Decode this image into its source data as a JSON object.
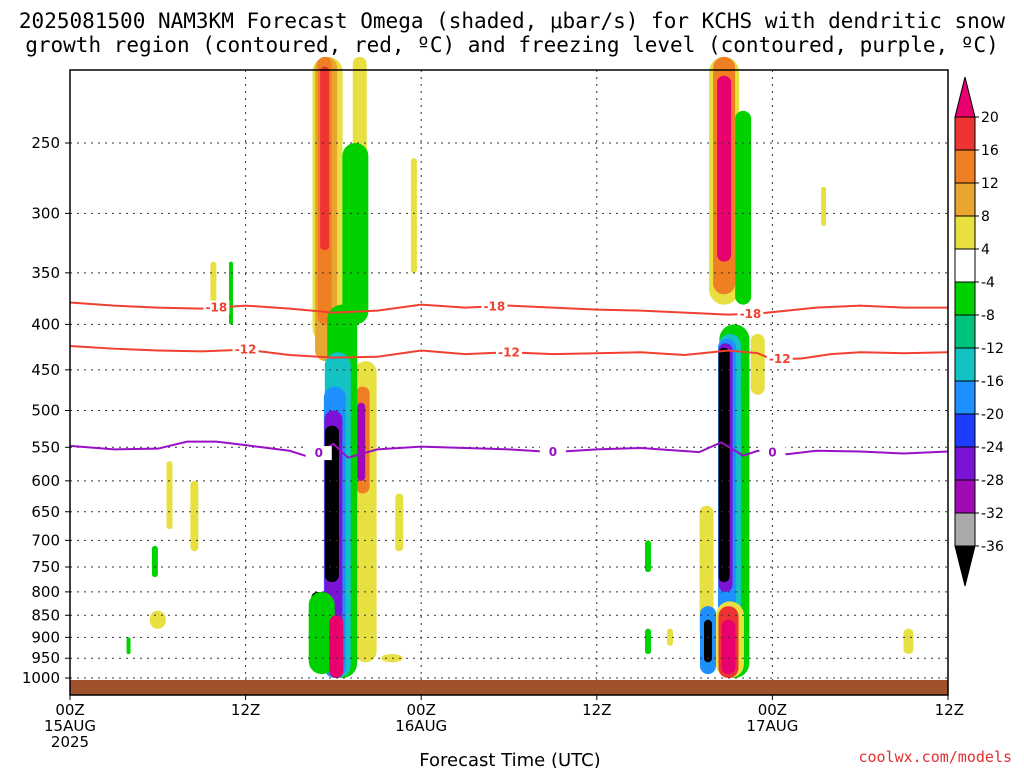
{
  "chart_data": {
    "type": "heatmap",
    "title_line1": "2025081500 NAM3KM Forecast Omega (shaded, μbar/s) for KCHS with dendritic snow",
    "title_line2": "growth region (contoured, red, ºC) and freezing level (contoured, purple, ºC)",
    "xlabel": "Forecast Time (UTC)",
    "ylabel": "",
    "x_ticks": [
      {
        "hour": 0,
        "lines": [
          "00Z",
          "15AUG",
          "2025"
        ]
      },
      {
        "hour": 12,
        "lines": [
          "12Z"
        ]
      },
      {
        "hour": 24,
        "lines": [
          "00Z",
          "16AUG"
        ]
      },
      {
        "hour": 36,
        "lines": [
          "12Z"
        ]
      },
      {
        "hour": 48,
        "lines": [
          "00Z",
          "17AUG"
        ]
      },
      {
        "hour": 60,
        "lines": [
          "12Z"
        ]
      }
    ],
    "xlim": [
      0,
      60
    ],
    "y_ticks": [
      "250",
      "300",
      "350",
      "400",
      "450",
      "500",
      "550",
      "600",
      "650",
      "700",
      "750",
      "800",
      "850",
      "900",
      "950",
      "1000"
    ],
    "ylim_hPa": [
      1000,
      200
    ],
    "colorbar": {
      "labels": [
        "20",
        "16",
        "12",
        "8",
        "4",
        "-4",
        "-8",
        "-12",
        "-16",
        "-20",
        "-24",
        "-28",
        "-32",
        "-36"
      ],
      "colors": [
        "#e8006f",
        "#ee3333",
        "#ee7f22",
        "#e8a530",
        "#e7e040",
        "#ffffff",
        "#00d200",
        "#00c37b",
        "#13c3c3",
        "#1e90ff",
        "#1e3cff",
        "#7b12d6",
        "#a00ab4",
        "#aaaaaa",
        "#000000"
      ]
    },
    "contours": [
      {
        "name": "-18",
        "color": "#f04030",
        "label_positions_hours": [
          10,
          29,
          46.5
        ]
      },
      {
        "name": "-12",
        "color": "#f04030",
        "label_positions_hours": [
          12,
          30,
          48.5
        ]
      },
      {
        "name": "0",
        "color": "#9a10c8",
        "label_positions_hours": [
          17,
          33,
          48
        ]
      }
    ],
    "series": [
      {
        "name": "-18",
        "x": [
          0,
          3,
          6,
          9,
          12,
          15,
          18,
          21,
          24,
          27,
          30,
          33,
          36,
          39,
          42,
          45,
          47,
          49,
          51,
          54,
          57,
          60
        ],
        "y": [
          378,
          381,
          383,
          384,
          381,
          384,
          388,
          386,
          380,
          383,
          381,
          383,
          385,
          386,
          388,
          390,
          389,
          386,
          383,
          381,
          383,
          383
        ]
      },
      {
        "name": "-12",
        "x": [
          0,
          3,
          6,
          9,
          12,
          15,
          18,
          21,
          24,
          27,
          30,
          33,
          36,
          39,
          42,
          45,
          47,
          48,
          50,
          52,
          54,
          57,
          60
        ],
        "y": [
          423,
          426,
          428,
          429,
          427,
          433,
          436,
          435,
          428,
          432,
          430,
          432,
          431,
          430,
          433,
          428,
          431,
          438,
          437,
          432,
          430,
          431,
          430
        ]
      },
      {
        "name": "0",
        "x": [
          0,
          3,
          6,
          8,
          10,
          12,
          15,
          16.5,
          18,
          19,
          21,
          24,
          27,
          30,
          33,
          36,
          39,
          43,
          44.5,
          46,
          47,
          49,
          51,
          54,
          57,
          60
        ],
        "y": [
          548,
          553,
          552,
          542,
          542,
          547,
          555,
          565,
          545,
          565,
          553,
          549,
          551,
          553,
          557,
          553,
          551,
          557,
          543,
          562,
          555,
          560,
          555,
          556,
          559,
          556
        ]
      }
    ],
    "shaded_features": [
      {
        "name": "upward motion column 15AUG 18Z",
        "type": "negative omega",
        "center_hour": 17.3,
        "top_hPa": 480,
        "bottom_hPa": 1000,
        "min_value": "<-36"
      },
      {
        "name": "subsidence column 15AUG 18Z upper",
        "type": "positive omega",
        "center_hour": 17.5,
        "top_hPa": 200,
        "bottom_hPa": 440,
        "max_value": ">20"
      },
      {
        "name": "upward motion column 16AUG 19Z",
        "type": "negative omega",
        "center_hour": 44.7,
        "top_hPa": 400,
        "bottom_hPa": 1000,
        "min_value": "<-36"
      },
      {
        "name": "subsidence column 16AUG 19Z upper",
        "type": "positive omega",
        "center_hour": 44.8,
        "top_hPa": 200,
        "bottom_hPa": 380,
        "max_value": ">20"
      }
    ],
    "grid": true,
    "legend_placement": "right colorbar"
  },
  "credit": "coolwx.com/models"
}
